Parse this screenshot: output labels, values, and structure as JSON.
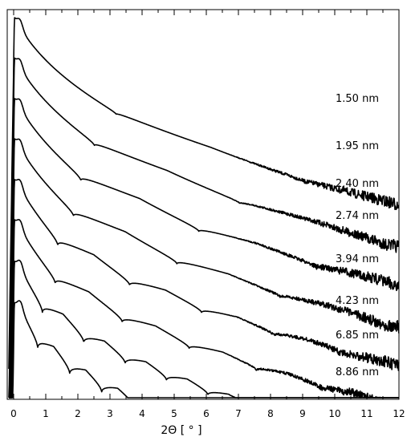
{
  "chart_data": {
    "type": "line",
    "title": "",
    "xlabel": "2Θ [ ° ]",
    "ylabel": "",
    "xlim": [
      -0.2,
      12
    ],
    "xticks": [
      0,
      1,
      2,
      3,
      4,
      5,
      6,
      7,
      8,
      9,
      10,
      11,
      12
    ],
    "y_scale": "log (stacked, offset)",
    "grid": false,
    "legend": "none",
    "line_color": "#000000",
    "series": [
      {
        "name": "1.50 nm",
        "thickness_nm": 1.5
      },
      {
        "name": "1.95 nm",
        "thickness_nm": 1.95
      },
      {
        "name": "2.40 nm",
        "thickness_nm": 2.4
      },
      {
        "name": "2.74 nm",
        "thickness_nm": 2.74
      },
      {
        "name": "3.94 nm",
        "thickness_nm": 3.94
      },
      {
        "name": "4.23 nm",
        "thickness_nm": 4.23
      },
      {
        "name": "6.85 nm",
        "thickness_nm": 6.85
      },
      {
        "name": "8.86 nm",
        "thickness_nm": 8.86
      }
    ]
  }
}
